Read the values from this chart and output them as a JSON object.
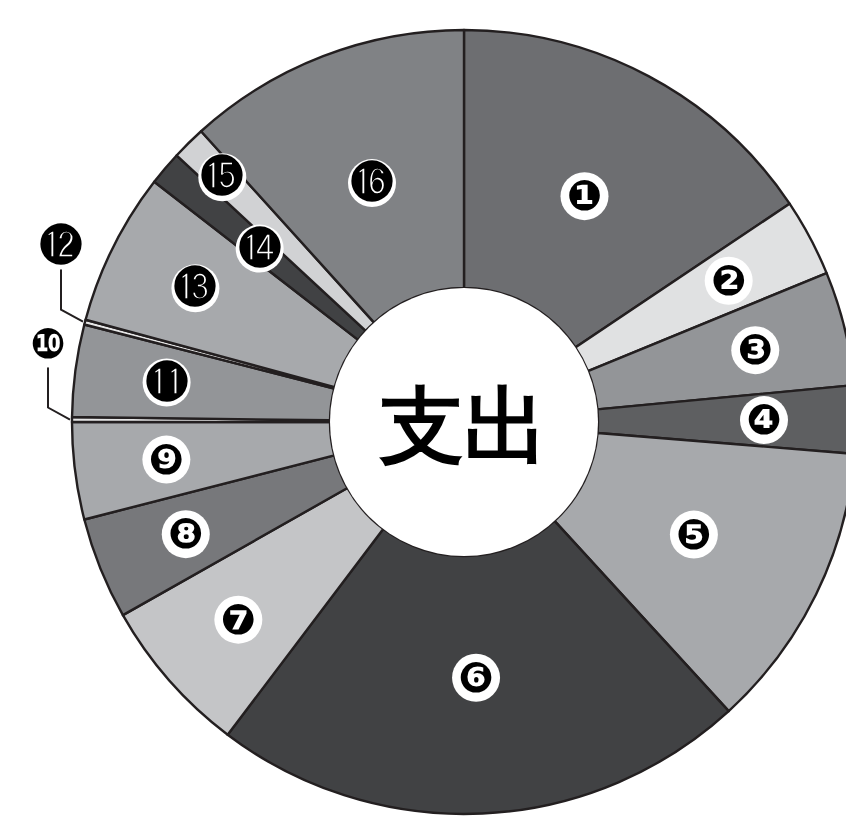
{
  "chart_data": {
    "type": "donut",
    "title": "支出",
    "categories": [
      "❶",
      "❷",
      "❸",
      "❹",
      "❺",
      "❻",
      "❼",
      "❽",
      "❾",
      "❿",
      "⓫",
      "⓬",
      "⓭",
      "⓮",
      "⓯",
      "⓰"
    ],
    "values": [
      15.6,
      3.2,
      4.7,
      2.8,
      11.9,
      22.1,
      6.5,
      4.2,
      4.0,
      0.2,
      3.8,
      0.2,
      6.3,
      1.4,
      1.4,
      11.7
    ],
    "colors": [
      "#6d6e71",
      "#e0e1e2",
      "#939598",
      "#5e5f61",
      "#a7a9ac",
      "#414244",
      "#c4c5c7",
      "#77787b",
      "#a7a9ac",
      "#e6e6e6",
      "#939598",
      "#e6e6e6",
      "#a7a9ac",
      "#414244",
      "#d1d2d4",
      "#808285"
    ]
  }
}
